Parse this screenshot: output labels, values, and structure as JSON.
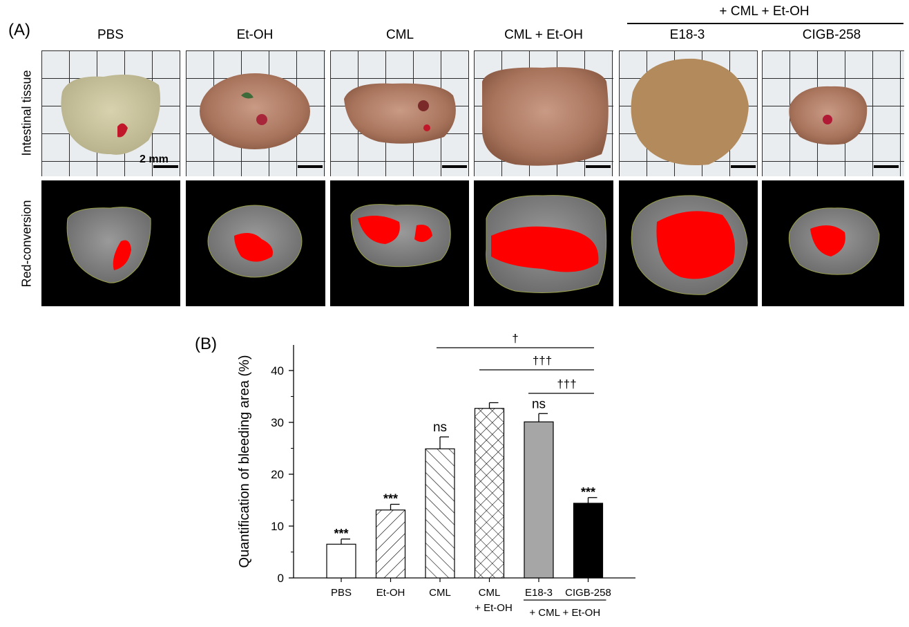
{
  "panel_a": {
    "label": "(A)",
    "group_header": "+ CML + Et-OH",
    "columns": [
      "PBS",
      "Et-OH",
      "CML",
      "CML + Et-OH",
      "E18-3",
      "CIGB-258"
    ],
    "row_labels": [
      "Intestinal tissue",
      "Red-conversion"
    ],
    "scale_bar_label": "2 mm"
  },
  "panel_b": {
    "label": "(B)"
  },
  "chart_data": {
    "type": "bar",
    "title": "",
    "xlabel": "",
    "ylabel": "Quantification of bleeding area (%)",
    "ylim": [
      0,
      45
    ],
    "yticks": [
      0,
      10,
      20,
      30,
      40
    ],
    "categories": [
      "PBS",
      "Et-OH",
      "CML",
      "CML\n+ Et-OH",
      "E18-3",
      "CIGB-258"
    ],
    "values": [
      6.5,
      13.1,
      24.9,
      32.7,
      30.1,
      14.4
    ],
    "errors": [
      1.0,
      1.1,
      2.3,
      1.1,
      1.6,
      1.1
    ],
    "fills": [
      "white",
      "hatch-forward",
      "hatch-back",
      "crosshatch",
      "#a6a6a6",
      "#000000"
    ],
    "annotations": [
      "***",
      "***",
      "ns",
      "",
      "ns",
      "***"
    ],
    "group_label": "+ CML + Et-OH",
    "significance_lines": [
      {
        "from": "CML",
        "to": "CIGB-258",
        "label": "†"
      },
      {
        "from": "CML + Et-OH",
        "to": "CIGB-258",
        "label": "†††"
      },
      {
        "from": "E18-3",
        "to": "CIGB-258",
        "label": "†††"
      }
    ],
    "grid": false,
    "legend": "none"
  }
}
